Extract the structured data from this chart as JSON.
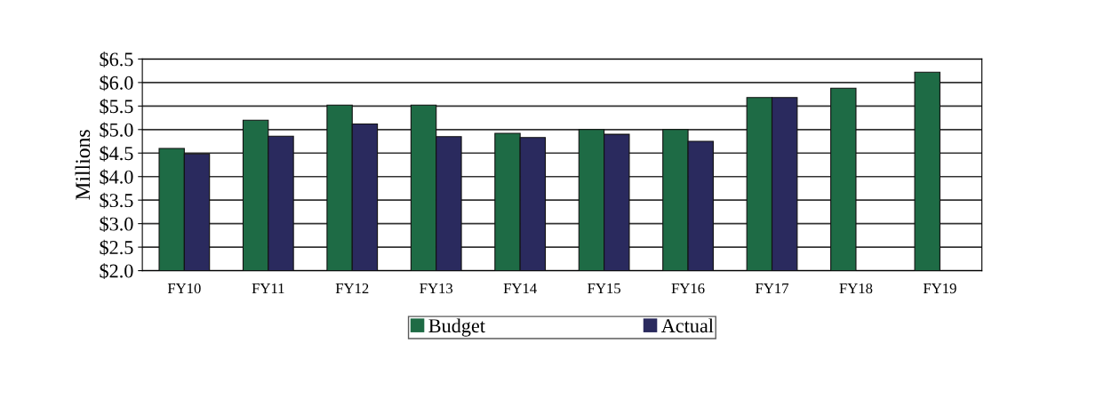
{
  "chart_data": {
    "type": "bar",
    "ylabel": "Millions",
    "categories": [
      "FY10",
      "FY11",
      "FY12",
      "FY13",
      "FY14",
      "FY15",
      "FY16",
      "FY17",
      "FY18",
      "FY19"
    ],
    "series": [
      {
        "name": "Budget",
        "color": "#1e6b45",
        "values": [
          4.6,
          5.2,
          5.52,
          5.52,
          4.92,
          5.0,
          5.0,
          5.68,
          5.88,
          6.22
        ]
      },
      {
        "name": "Actual",
        "color": "#2a2a5e",
        "values": [
          4.48,
          4.86,
          5.12,
          4.85,
          4.83,
          4.9,
          4.75,
          5.68,
          null,
          null
        ]
      }
    ],
    "ylim": [
      2.0,
      6.5
    ],
    "yticks": [
      {
        "value": 2.0,
        "label": "$2.0"
      },
      {
        "value": 2.5,
        "label": "$2.5"
      },
      {
        "value": 3.0,
        "label": "$3.0"
      },
      {
        "value": 3.5,
        "label": "$3.5"
      },
      {
        "value": 4.0,
        "label": "$4.0"
      },
      {
        "value": 4.5,
        "label": "$4.5"
      },
      {
        "value": 5.0,
        "label": "$5.0"
      },
      {
        "value": 5.5,
        "label": "$5.5"
      },
      {
        "value": 6.0,
        "label": "$6.0"
      },
      {
        "value": 6.5,
        "label": "$6.5"
      }
    ],
    "grid": "y",
    "legend": "bottom"
  }
}
